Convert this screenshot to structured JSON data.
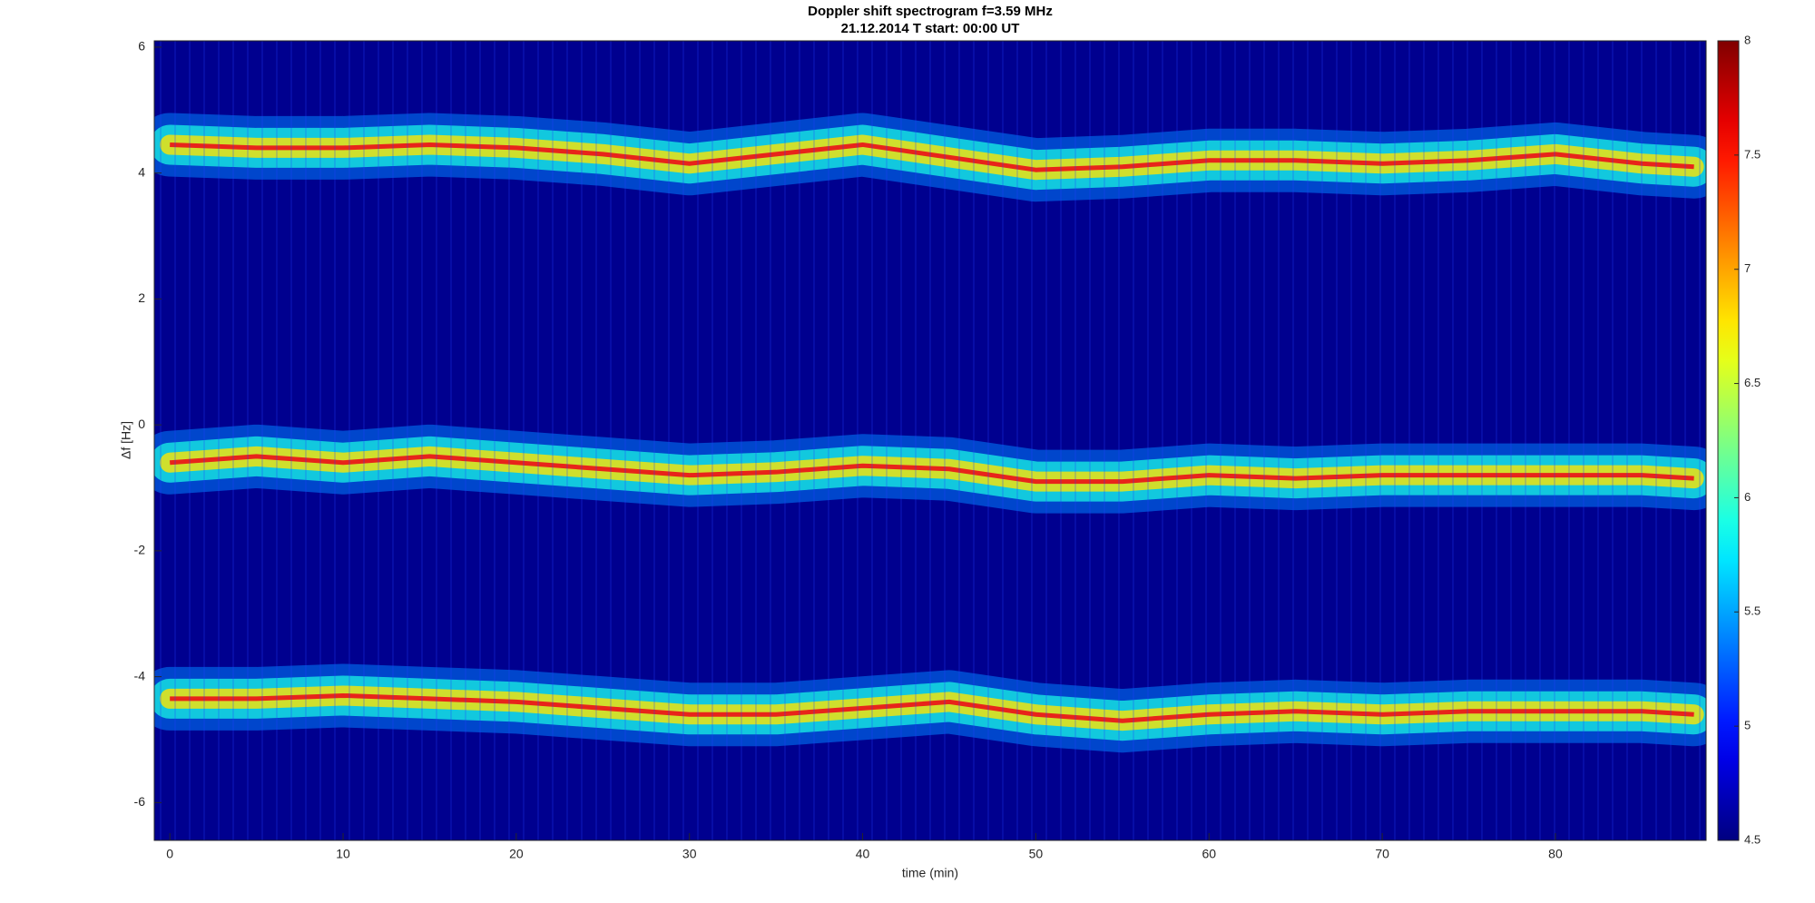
{
  "chart_data": {
    "type": "spectrogram",
    "title": "Doppler shift spectrogram f=3.59 MHz",
    "subtitle": "21.12.2014   T start: 00:00 UT",
    "x_label": "time (min)",
    "y_label": "Δf [Hz]",
    "xlim": [
      -0.9,
      88.7
    ],
    "xticks": [
      0,
      10,
      20,
      30,
      40,
      50,
      60,
      70,
      80
    ],
    "ylim": [
      -6.6,
      6.1
    ],
    "yticks": [
      -6,
      -4,
      -2,
      0,
      2,
      4,
      6
    ],
    "colormap": "jet",
    "clim": [
      4.5,
      8
    ],
    "cticks": [
      4.5,
      5,
      5.5,
      6,
      6.5,
      7,
      7.5,
      8
    ],
    "x": [
      0,
      5,
      10,
      15,
      20,
      25,
      30,
      35,
      40,
      45,
      50,
      55,
      60,
      65,
      70,
      75,
      80,
      85,
      88
    ],
    "series": [
      {
        "color": "#e8241a",
        "values": [
          4.45,
          4.4,
          4.4,
          4.45,
          4.4,
          4.3,
          4.15,
          4.3,
          4.45,
          4.25,
          4.05,
          4.1,
          4.2,
          4.2,
          4.15,
          4.2,
          4.3,
          4.15,
          4.1
        ]
      },
      {
        "color": "#e8241a",
        "values": [
          -0.6,
          -0.5,
          -0.6,
          -0.5,
          -0.6,
          -0.7,
          -0.8,
          -0.75,
          -0.65,
          -0.7,
          -0.9,
          -0.9,
          -0.8,
          -0.85,
          -0.8,
          -0.8,
          -0.8,
          -0.8,
          -0.85
        ]
      },
      {
        "color": "#e8241a",
        "values": [
          -4.35,
          -4.35,
          -4.3,
          -4.35,
          -4.4,
          -4.5,
          -4.6,
          -4.6,
          -4.5,
          -4.4,
          -4.6,
          -4.7,
          -4.6,
          -4.55,
          -4.6,
          -4.55,
          -4.55,
          -4.55,
          -4.6
        ]
      }
    ]
  }
}
